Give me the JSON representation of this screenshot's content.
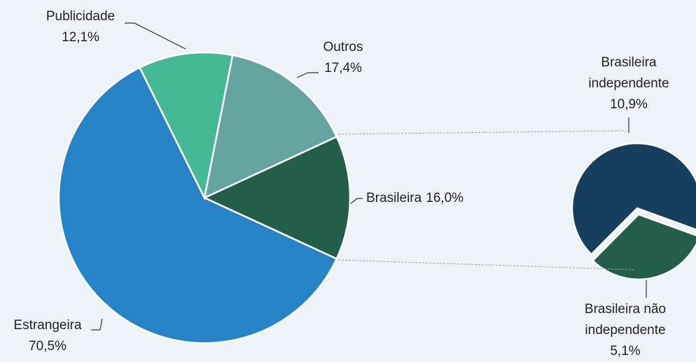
{
  "chart_data": [
    {
      "type": "pie",
      "categories": [
        "Brasileira",
        "Estrangeira",
        "Publicidade",
        "Outros"
      ],
      "values": [
        16.0,
        70.5,
        12.1,
        17.4
      ],
      "value_labels": [
        "16,0%",
        "70,5%",
        "12,1%",
        "17,4%"
      ],
      "colors": [
        "#225e4a",
        "#2783c8",
        "#45b995",
        "#64a39e"
      ]
    },
    {
      "type": "pie",
      "categories": [
        "Brasileira não independente",
        "Brasileira independente"
      ],
      "values": [
        5.1,
        10.9
      ],
      "value_labels": [
        "5,1%",
        "10,9%"
      ],
      "colors": [
        "#225e4a",
        "#163f5f"
      ]
    }
  ]
}
